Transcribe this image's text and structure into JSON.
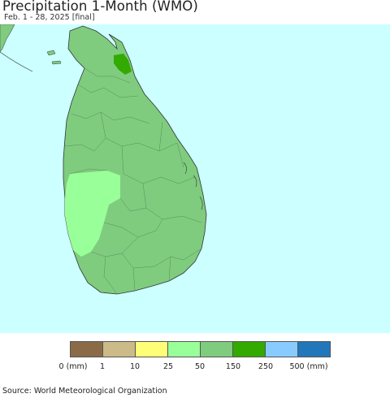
{
  "header": {
    "title": "Precipitation 1-Month (WMO)",
    "subtitle": "Feb. 1 - 28, 2025 [final]"
  },
  "map": {
    "ocean_color": "#ccffff",
    "land_color_base": "#7fcc7f",
    "region_colors": {
      "west_coast_light": "#99ff99",
      "north_dark": "#33aa00"
    }
  },
  "legend": {
    "colors": [
      "#8b6b47",
      "#ccbb88",
      "#ffff77",
      "#99ff99",
      "#7fcc7f",
      "#33aa00",
      "#88ccff",
      "#2277bb"
    ],
    "labels": [
      "0 (mm)",
      "1",
      "10",
      "25",
      "50",
      "150",
      "250",
      "500 (mm)"
    ]
  },
  "footer": {
    "source": "Source: World Meteorological Organization"
  }
}
